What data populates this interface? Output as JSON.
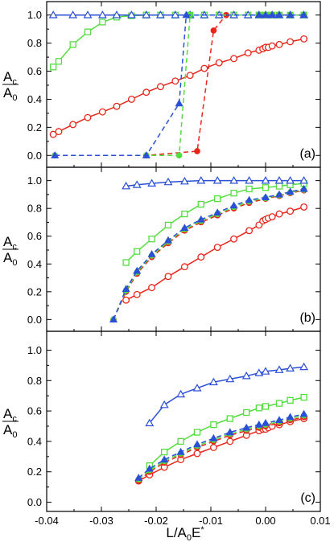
{
  "colors": {
    "red": "#e8261a",
    "green": "#55dd40",
    "blue": "#2b4fd6",
    "axis": "#000000"
  },
  "chart_data": [
    {
      "type": "line",
      "panel_label": "(a)",
      "ylabel": {
        "main": "A",
        "sub_num": "c",
        "den": "A",
        "sub_den": "0"
      },
      "xlim": [
        -0.04,
        0.01
      ],
      "ylim": [
        -0.05,
        1.05
      ],
      "xticks": [
        -0.04,
        -0.03,
        -0.02,
        -0.01,
        0.0,
        0.01
      ],
      "yticks": [
        0.0,
        0.2,
        0.4,
        0.6,
        0.8,
        1.0
      ],
      "ytick_labels": [
        "0.0",
        "0.2",
        "0.4",
        "0.6",
        "0.8",
        "1.0"
      ],
      "series": [
        {
          "color": "red",
          "marker": "circle-open",
          "dash": false,
          "x": [
            -0.0388,
            -0.0378,
            -0.0352,
            -0.0325,
            -0.0298,
            -0.0272,
            -0.0245,
            -0.0218,
            -0.0192,
            -0.0165,
            -0.0138,
            -0.0112,
            -0.0085,
            -0.0058,
            -0.0032,
            -0.0012,
            -0.0005,
            0.0,
            0.0005,
            0.0012,
            0.0025,
            0.0045,
            0.007
          ],
          "y": [
            0.15,
            0.17,
            0.22,
            0.27,
            0.31,
            0.35,
            0.4,
            0.45,
            0.49,
            0.53,
            0.57,
            0.62,
            0.66,
            0.69,
            0.73,
            0.75,
            0.76,
            0.77,
            0.77,
            0.78,
            0.79,
            0.81,
            0.83
          ]
        },
        {
          "color": "green",
          "marker": "square-open",
          "dash": false,
          "x": [
            -0.0388,
            -0.0378,
            -0.0352,
            -0.0325,
            -0.0298,
            -0.0272,
            -0.0245,
            -0.0218,
            -0.0192,
            -0.0165,
            -0.0138,
            -0.0112,
            -0.0085,
            -0.0058,
            -0.0032,
            -0.0012,
            0.0,
            0.0012,
            0.0025,
            0.0045,
            0.007
          ],
          "y": [
            0.63,
            0.67,
            0.79,
            0.88,
            0.95,
            0.985,
            0.995,
            1.0,
            1.0,
            1.0,
            1.0,
            1.0,
            1.0,
            1.0,
            1.0,
            1.0,
            1.0,
            1.0,
            1.0,
            1.0,
            1.0
          ]
        },
        {
          "color": "blue",
          "marker": "triangle-open",
          "dash": false,
          "x": [
            -0.0388,
            -0.0352,
            -0.0325,
            -0.0298,
            -0.0272,
            -0.0245,
            -0.0218,
            -0.0192,
            -0.0165,
            -0.0138,
            -0.0112,
            -0.0085,
            -0.0058,
            -0.0032,
            -0.0012,
            0.0,
            0.0012,
            0.0025,
            0.0045,
            0.007
          ],
          "y": [
            1.0,
            1.0,
            1.0,
            1.0,
            1.0,
            1.0,
            1.0,
            1.0,
            1.0,
            1.0,
            1.0,
            1.0,
            1.0,
            1.0,
            1.0,
            1.0,
            1.0,
            1.0,
            1.0,
            1.0
          ]
        },
        {
          "color": "red",
          "marker": "circle-filled",
          "dash": true,
          "x": [
            -0.0385,
            -0.0218,
            -0.0125,
            -0.0095,
            -0.0072,
            -0.0012,
            0.0,
            0.0012,
            0.0025,
            0.0045,
            0.007
          ],
          "y": [
            0.0,
            0.0,
            0.03,
            0.89,
            1.0,
            1.0,
            1.0,
            1.0,
            1.0,
            1.0,
            1.0
          ]
        },
        {
          "color": "green",
          "marker": "circle-filled",
          "dash": true,
          "x": [
            -0.0385,
            -0.0218,
            -0.0158,
            -0.0138,
            -0.0012,
            0.0,
            0.0012,
            0.0025,
            0.0045,
            0.007
          ],
          "y": [
            0.0,
            0.0,
            0.0,
            1.0,
            1.0,
            1.0,
            1.0,
            1.0,
            1.0,
            1.0
          ]
        },
        {
          "color": "blue",
          "marker": "triangle-filled",
          "dash": true,
          "x": [
            -0.0385,
            -0.0218,
            -0.0158,
            -0.0145,
            -0.0012,
            0.0,
            0.0012,
            0.0025,
            0.0045,
            0.007
          ],
          "y": [
            0.0,
            0.0,
            0.37,
            1.0,
            1.0,
            1.0,
            1.0,
            1.0,
            1.0,
            1.0
          ]
        }
      ]
    },
    {
      "type": "line",
      "panel_label": "(b)",
      "ylabel": {
        "main": "A",
        "sub_num": "c",
        "den": "A",
        "sub_den": "0"
      },
      "xlim": [
        -0.04,
        0.01
      ],
      "ylim": [
        -0.05,
        1.05
      ],
      "xticks": [
        -0.04,
        -0.03,
        -0.02,
        -0.01,
        0.0,
        0.01
      ],
      "yticks": [
        0.0,
        0.2,
        0.4,
        0.6,
        0.8,
        1.0
      ],
      "ytick_labels": [
        "0.0",
        "0.2",
        "0.4",
        "0.6",
        "0.8",
        "1.0"
      ],
      "series": [
        {
          "color": "red",
          "marker": "circle-open",
          "dash": false,
          "x": [
            -0.0255,
            -0.0235,
            -0.0208,
            -0.0178,
            -0.0148,
            -0.0118,
            -0.0088,
            -0.0058,
            -0.003,
            -0.0012,
            -0.0005,
            0.0,
            0.0005,
            0.0012,
            0.0025,
            0.0045,
            0.007
          ],
          "y": [
            0.14,
            0.18,
            0.23,
            0.31,
            0.38,
            0.45,
            0.52,
            0.58,
            0.64,
            0.68,
            0.71,
            0.72,
            0.73,
            0.74,
            0.76,
            0.78,
            0.81
          ]
        },
        {
          "color": "green",
          "marker": "square-open",
          "dash": false,
          "x": [
            -0.0255,
            -0.0235,
            -0.0208,
            -0.0178,
            -0.0148,
            -0.0118,
            -0.0088,
            -0.0058,
            -0.003,
            0.0,
            0.0025,
            0.0045,
            0.007
          ],
          "y": [
            0.41,
            0.49,
            0.58,
            0.68,
            0.76,
            0.83,
            0.87,
            0.91,
            0.94,
            0.95,
            0.96,
            0.97,
            0.98
          ]
        },
        {
          "color": "blue",
          "marker": "triangle-open",
          "dash": false,
          "x": [
            -0.0255,
            -0.0235,
            -0.0208,
            -0.0178,
            -0.0148,
            -0.0118,
            -0.0088,
            -0.0058,
            -0.003,
            0.0,
            0.0025,
            0.0045,
            0.007
          ],
          "y": [
            0.96,
            0.97,
            0.98,
            0.99,
            0.995,
            1.0,
            1.0,
            1.0,
            1.0,
            1.0,
            1.0,
            1.0,
            1.0
          ]
        },
        {
          "color": "red",
          "marker": "circle-filled",
          "dash": true,
          "x": [
            -0.0278,
            -0.0255,
            -0.0235,
            -0.0208,
            -0.0178,
            -0.0148,
            -0.0118,
            -0.0088,
            -0.0058,
            -0.003,
            0.0,
            0.0025,
            0.0045,
            0.007
          ],
          "y": [
            0.0,
            0.2,
            0.33,
            0.45,
            0.55,
            0.64,
            0.7,
            0.75,
            0.8,
            0.84,
            0.87,
            0.89,
            0.91,
            0.93
          ]
        },
        {
          "color": "green",
          "marker": "circle-filled",
          "dash": true,
          "x": [
            -0.0278,
            -0.0255,
            -0.0235,
            -0.0208,
            -0.0178,
            -0.0148,
            -0.0118,
            -0.0088,
            -0.0058,
            -0.003,
            0.0,
            0.0025,
            0.0045,
            0.007
          ],
          "y": [
            0.0,
            0.21,
            0.34,
            0.46,
            0.56,
            0.65,
            0.71,
            0.76,
            0.81,
            0.85,
            0.875,
            0.895,
            0.915,
            0.935
          ]
        },
        {
          "color": "blue",
          "marker": "triangle-filled",
          "dash": true,
          "x": [
            -0.0278,
            -0.0255,
            -0.0235,
            -0.0208,
            -0.0178,
            -0.0148,
            -0.0118,
            -0.0088,
            -0.0058,
            -0.003,
            0.0,
            0.0025,
            0.0045,
            0.007
          ],
          "y": [
            0.0,
            0.22,
            0.35,
            0.47,
            0.57,
            0.66,
            0.72,
            0.77,
            0.82,
            0.86,
            0.88,
            0.9,
            0.92,
            0.94
          ]
        }
      ]
    },
    {
      "type": "line",
      "panel_label": "(c)",
      "ylabel": {
        "main": "A",
        "sub_num": "c",
        "den": "A",
        "sub_den": "0"
      },
      "xlim": [
        -0.04,
        0.01
      ],
      "ylim": [
        -0.05,
        1.05
      ],
      "xticks": [
        -0.04,
        -0.03,
        -0.02,
        -0.01,
        0.0,
        0.01
      ],
      "xtick_labels": [
        "-0.04",
        "-0.03",
        "-0.02",
        "-0.01",
        "0.00",
        "0.01"
      ],
      "yticks": [
        0.0,
        0.2,
        0.4,
        0.6,
        0.8,
        1.0
      ],
      "ytick_labels": [
        "0.0",
        "0.2",
        "0.4",
        "0.6",
        "0.8",
        "1.0"
      ],
      "xlabel": {
        "main": "L/A",
        "sub": "0",
        "tail": "E",
        "sup": "*"
      },
      "series": [
        {
          "color": "red",
          "marker": "circle-open",
          "dash": false,
          "x": [
            -0.0232,
            -0.0212,
            -0.0185,
            -0.0155,
            -0.0125,
            -0.0095,
            -0.0065,
            -0.0035,
            -0.0012,
            -0.0005,
            0.0,
            0.0005,
            0.0012,
            0.0025,
            0.0045,
            0.007
          ],
          "y": [
            0.14,
            0.18,
            0.23,
            0.28,
            0.32,
            0.36,
            0.4,
            0.44,
            0.47,
            0.48,
            0.48,
            0.49,
            0.5,
            0.51,
            0.53,
            0.55
          ]
        },
        {
          "color": "green",
          "marker": "square-open",
          "dash": false,
          "x": [
            -0.0212,
            -0.0185,
            -0.0155,
            -0.0125,
            -0.0095,
            -0.0065,
            -0.0035,
            -0.0012,
            0.0,
            0.0025,
            0.0045,
            0.007
          ],
          "y": [
            0.24,
            0.33,
            0.4,
            0.46,
            0.51,
            0.55,
            0.59,
            0.62,
            0.63,
            0.65,
            0.67,
            0.69
          ]
        },
        {
          "color": "blue",
          "marker": "triangle-open",
          "dash": false,
          "x": [
            -0.0212,
            -0.0185,
            -0.0155,
            -0.0125,
            -0.0095,
            -0.0065,
            -0.0035,
            -0.0012,
            0.0,
            0.0025,
            0.0045,
            0.007
          ],
          "y": [
            0.52,
            0.64,
            0.71,
            0.75,
            0.79,
            0.81,
            0.83,
            0.85,
            0.86,
            0.87,
            0.88,
            0.89
          ]
        },
        {
          "color": "red",
          "marker": "circle-filled",
          "dash": true,
          "x": [
            -0.0232,
            -0.0212,
            -0.0185,
            -0.0155,
            -0.0125,
            -0.0095,
            -0.0065,
            -0.0035,
            -0.0012,
            0.0,
            0.0025,
            0.0045,
            0.007
          ],
          "y": [
            0.14,
            0.2,
            0.26,
            0.31,
            0.36,
            0.4,
            0.44,
            0.47,
            0.49,
            0.5,
            0.52,
            0.54,
            0.56
          ]
        },
        {
          "color": "green",
          "marker": "circle-filled",
          "dash": true,
          "x": [
            -0.0232,
            -0.0212,
            -0.0185,
            -0.0155,
            -0.0125,
            -0.0095,
            -0.0065,
            -0.0035,
            -0.0012,
            0.0,
            0.0025,
            0.0045,
            0.007
          ],
          "y": [
            0.15,
            0.21,
            0.27,
            0.32,
            0.37,
            0.41,
            0.45,
            0.48,
            0.5,
            0.51,
            0.53,
            0.55,
            0.57
          ]
        },
        {
          "color": "blue",
          "marker": "triangle-filled",
          "dash": true,
          "x": [
            -0.0232,
            -0.0212,
            -0.0185,
            -0.0155,
            -0.0125,
            -0.0095,
            -0.0065,
            -0.0035,
            -0.0012,
            0.0,
            0.0025,
            0.0045,
            0.007
          ],
          "y": [
            0.16,
            0.22,
            0.28,
            0.33,
            0.38,
            0.42,
            0.46,
            0.49,
            0.51,
            0.52,
            0.54,
            0.56,
            0.58
          ]
        }
      ]
    }
  ]
}
